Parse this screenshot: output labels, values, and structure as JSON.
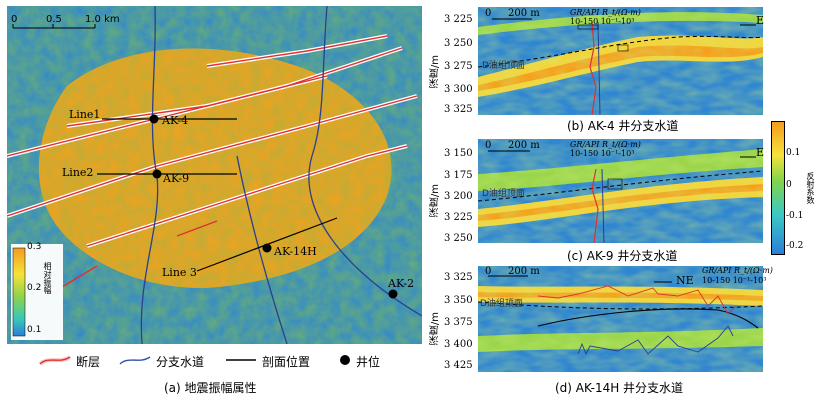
{
  "map": {
    "scale": {
      "ticks": [
        "0",
        "0.5",
        "1.0 km"
      ]
    },
    "lines": [
      "Line1",
      "Line2",
      "Line 3"
    ],
    "wells": [
      "AK-4",
      "AK-9",
      "AK-14H",
      "AK-2"
    ],
    "colorbar": {
      "label": "相对振幅",
      "ticks": [
        "0.3",
        "0.2",
        "0.1"
      ]
    }
  },
  "legend": {
    "fault": "断层",
    "channel": "分支水道",
    "section": "剖面位置",
    "well": "井位"
  },
  "captions": {
    "a": "(a) 地震振幅属性",
    "b": "(b) AK-4 井分支水道",
    "c": "(c) AK-9 井分支水道",
    "d": "(d) AK-14H 井分支水道"
  },
  "panel_b": {
    "ylabel": "深度/m",
    "yticks": [
      "3 225",
      "3 250",
      "3 275",
      "3 300",
      "3 325"
    ],
    "scale": [
      "0",
      "200 m"
    ],
    "direction": "E",
    "horizon": "D油组顶面",
    "log_header": "GR/API R_t/(Ω·m)",
    "log_ticks": "10-150 10⁻¹-10³"
  },
  "panel_c": {
    "ylabel": "深度/m",
    "yticks": [
      "3 150",
      "3 175",
      "3 200",
      "3 225",
      "3 250"
    ],
    "scale": [
      "0",
      "200 m"
    ],
    "direction": "E",
    "horizon": "D油组顶面",
    "log_header": "GR/API R_t/(Ω·m)",
    "log_ticks": "10-150 10⁻¹-10³"
  },
  "panel_d": {
    "ylabel": "深度/m",
    "yticks": [
      "3 325",
      "3 350",
      "3 375",
      "3 400",
      "3 425"
    ],
    "scale": [
      "0",
      "200 m"
    ],
    "direction": "NE",
    "horizon": "D油组顶面",
    "log_header": "GR/API R_t/(Ω·m)",
    "log_ticks": "10-150 10⁻¹-10³"
  },
  "reflect_colorbar": {
    "label": "反射系数",
    "ticks": [
      "0.1",
      "0",
      "-0.1",
      "-0.2"
    ]
  },
  "colors": {
    "fault": "#e03030",
    "channel": "#3050b0",
    "seismic_low": "#2a7fd6",
    "seismic_high": "#f5a21c"
  }
}
